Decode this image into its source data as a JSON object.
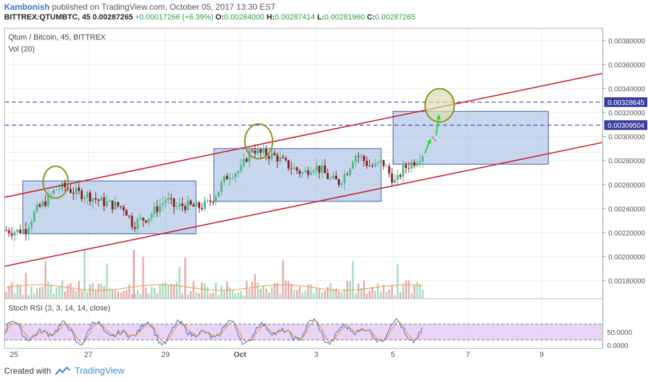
{
  "header": {
    "author": "Kambonish",
    "published_text": " published on TradingView.com, October 05, 2017 13:30 EST",
    "symbol": "BITTREX:QTUMBTC, 45",
    "last": "0.00287265",
    "change": "+0.00017266 (+6.39%)",
    "o_label": "O:",
    "o_value": "0.00284000",
    "h_label": "H:",
    "h_value": "0.00287414",
    "l_label": "L:",
    "l_value": "0.00281960",
    "c_label": "C:",
    "c_value": "0.00287265"
  },
  "legend": {
    "title": "Qtum / Bitcoin, 45, BITTREX",
    "volume": "Vol (20)",
    "stoch": "Stoch RSI (3, 3, 14, 14, close)"
  },
  "footer": {
    "created_with": "Created with",
    "brand": "TradingView"
  },
  "colors": {
    "up": "#53b987",
    "down": "#8b1f1f",
    "channel": "#cc1b2b",
    "hline": "#3b3fa0",
    "box_fill": "#9bb7e0",
    "box_stroke": "#3a5fae",
    "ellipse": "#8f8f1a",
    "arrow": "#22dd33",
    "stoch_fill": "#e2c6f2"
  },
  "chart_data": {
    "type": "candlestick",
    "price_axis": {
      "ticks": [
        0.0038,
        0.0036,
        0.0034,
        0.0032,
        0.003,
        0.0028,
        0.0026,
        0.0024,
        0.0022,
        0.002,
        0.0018
      ],
      "tick_labels": [
        "0.00380000",
        "0.00360000",
        "0.00340000",
        "0.00320000",
        "0.00300000",
        "0.00280000",
        "0.00260000",
        "0.00240000",
        "0.00220000",
        "0.00200000",
        "0.00180000"
      ],
      "range": [
        0.00165,
        0.0039
      ]
    },
    "x_axis": {
      "tick_labels": [
        "25",
        "27",
        "29",
        "Oct",
        "3",
        "5",
        "7",
        "9"
      ]
    },
    "horizontal_levels": [
      {
        "value": 0.00328645,
        "label": "0.00328645"
      },
      {
        "value": 0.00309504,
        "label": "0.00309504"
      }
    ],
    "channel": {
      "upper": {
        "start": 0.002495,
        "end": 0.003525
      },
      "lower": {
        "start": 0.00192,
        "end": 0.00295
      }
    },
    "boxes": [
      {
        "x_range": [
          0.03,
          0.32
        ],
        "price_range": [
          0.00219,
          0.00263
        ]
      },
      {
        "x_range": [
          0.35,
          0.63
        ],
        "price_range": [
          0.00246,
          0.0029
        ]
      },
      {
        "x_range": [
          0.65,
          0.91
        ],
        "price_range": [
          0.00277,
          0.00321
        ]
      }
    ],
    "price_path": [
      [
        0.0,
        0.00222
      ],
      [
        0.02,
        0.00221
      ],
      [
        0.035,
        0.00223
      ],
      [
        0.05,
        0.00237
      ],
      [
        0.07,
        0.00247
      ],
      [
        0.085,
        0.00256
      ],
      [
        0.1,
        0.00258
      ],
      [
        0.12,
        0.00253
      ],
      [
        0.14,
        0.00251
      ],
      [
        0.16,
        0.00246
      ],
      [
        0.18,
        0.00243
      ],
      [
        0.2,
        0.00241
      ],
      [
        0.215,
        0.00226
      ],
      [
        0.22,
        0.00229
      ],
      [
        0.24,
        0.00233
      ],
      [
        0.26,
        0.00243
      ],
      [
        0.27,
        0.00248
      ],
      [
        0.285,
        0.00241
      ],
      [
        0.3,
        0.00243
      ],
      [
        0.32,
        0.00241
      ],
      [
        0.33,
        0.00242
      ],
      [
        0.34,
        0.00244
      ],
      [
        0.355,
        0.00253
      ],
      [
        0.37,
        0.00266
      ],
      [
        0.38,
        0.0027
      ],
      [
        0.395,
        0.00272
      ],
      [
        0.405,
        0.00283
      ],
      [
        0.415,
        0.00291
      ],
      [
        0.425,
        0.00286
      ],
      [
        0.44,
        0.00285
      ],
      [
        0.455,
        0.00283
      ],
      [
        0.47,
        0.00277
      ],
      [
        0.485,
        0.00273
      ],
      [
        0.5,
        0.00269
      ],
      [
        0.515,
        0.00276
      ],
      [
        0.53,
        0.00272
      ],
      [
        0.545,
        0.00264
      ],
      [
        0.56,
        0.00262
      ],
      [
        0.575,
        0.00273
      ],
      [
        0.585,
        0.00285
      ],
      [
        0.595,
        0.00283
      ],
      [
        0.61,
        0.00276
      ],
      [
        0.62,
        0.00275
      ],
      [
        0.632,
        0.00279
      ],
      [
        0.645,
        0.00268
      ],
      [
        0.655,
        0.00261
      ],
      [
        0.665,
        0.00272
      ],
      [
        0.675,
        0.00276
      ],
      [
        0.685,
        0.00279
      ],
      [
        0.695,
        0.00284
      ],
      [
        0.702,
        0.00287
      ]
    ],
    "projection": {
      "arrow1_price": [
        0.00286,
        0.00298
      ],
      "arrow2_price": [
        0.00301,
        0.00318
      ],
      "target_price": 0.00326
    },
    "stoch_rsi": {
      "ticks": [
        50,
        0
      ],
      "tick_labels": [
        "50.0000",
        "0.0000"
      ]
    }
  }
}
